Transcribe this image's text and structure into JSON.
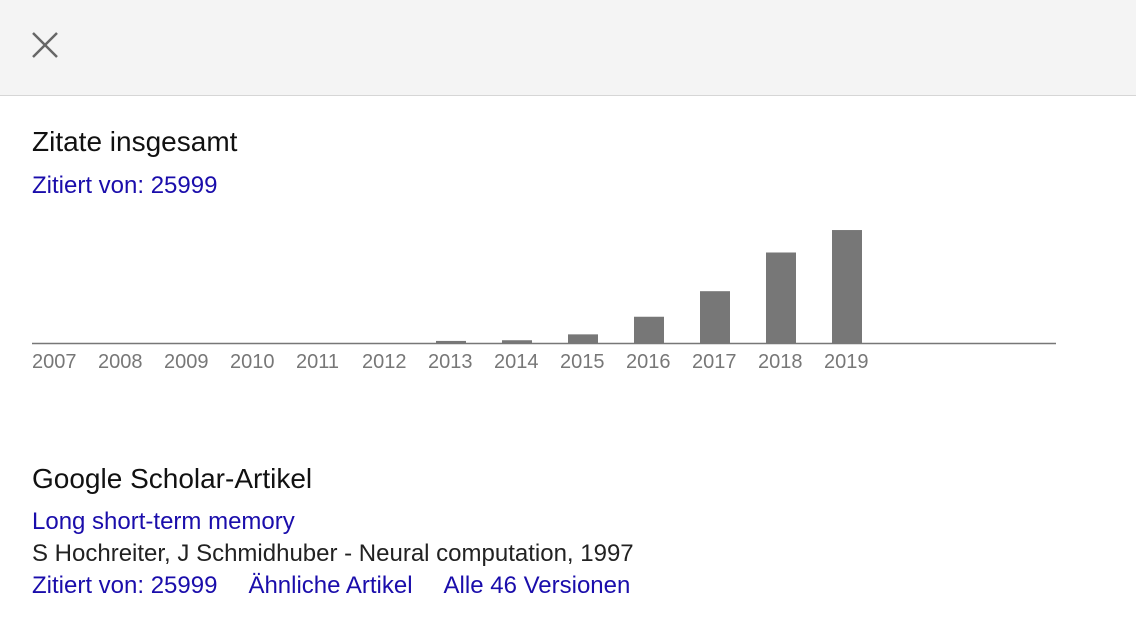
{
  "dialog": {
    "close_icon": "close-icon"
  },
  "citations": {
    "title": "Zitate insgesamt",
    "cited_by": "Zitiert von: 25999"
  },
  "chart_data": {
    "type": "bar",
    "categories": [
      "2007",
      "2008",
      "2009",
      "2010",
      "2011",
      "2012",
      "2013",
      "2014",
      "2015",
      "2016",
      "2017",
      "2018",
      "2019"
    ],
    "values": [
      0,
      0,
      0,
      0,
      0,
      0,
      60,
      80,
      250,
      760,
      1500,
      2620,
      3270
    ],
    "title": "",
    "xlabel": "",
    "ylabel": "",
    "ylim": [
      0,
      3300
    ],
    "grid": false,
    "bar_color": "#777777"
  },
  "articles": {
    "title": "Google Scholar-Artikel",
    "article_title": "Long short-term memory",
    "meta": "S Hochreiter, J Schmidhuber - Neural computation, 1997",
    "links": {
      "cited_by": "Zitiert von: 25999",
      "related": "Ähnliche Artikel",
      "versions": "Alle 46 Versionen"
    }
  },
  "colors": {
    "link": "#1a0dab",
    "topbar_bg": "#f4f4f4"
  }
}
